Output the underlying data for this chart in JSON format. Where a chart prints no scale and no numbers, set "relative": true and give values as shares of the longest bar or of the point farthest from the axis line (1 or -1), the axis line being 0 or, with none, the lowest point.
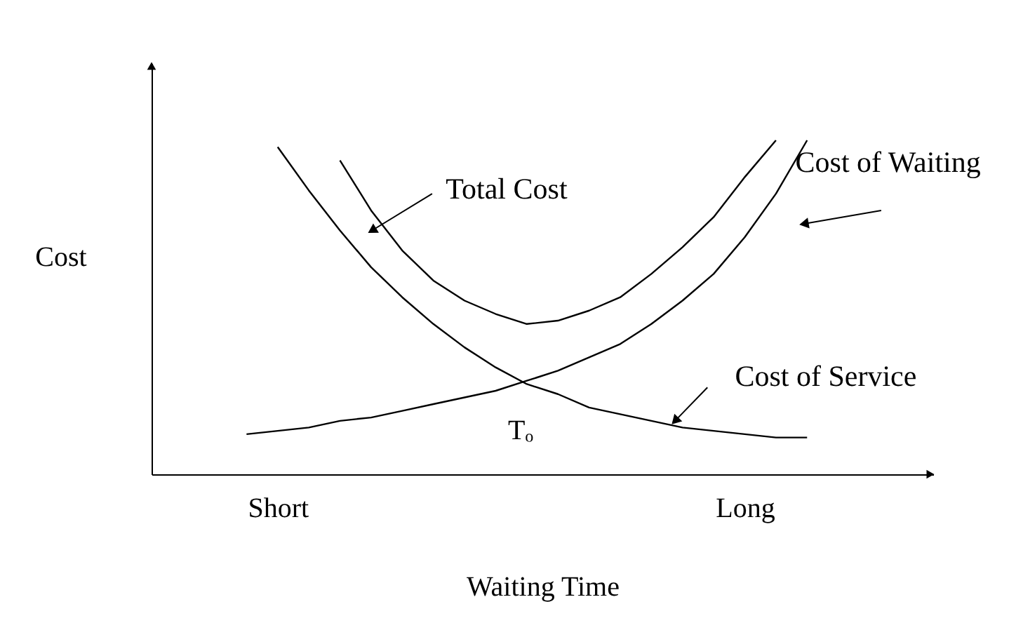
{
  "chart_data": {
    "type": "line",
    "relative": true,
    "xlabel": "Waiting Time",
    "ylabel": "Cost",
    "categories": [
      null,
      null,
      null,
      null,
      "Short",
      null,
      null,
      null,
      null,
      null,
      null,
      null,
      null,
      null,
      null,
      null,
      null,
      null,
      null,
      "Long",
      null,
      null,
      null,
      null,
      null,
      null
    ],
    "grid": false,
    "legend": false,
    "marker": "none",
    "line_style": "solid",
    "series": [
      {
        "name": "Total Cost",
        "color": "#000000",
        "values": [
          null,
          null,
          null,
          null,
          null,
          null,
          0.94,
          0.79,
          0.67,
          0.58,
          0.52,
          0.48,
          0.45,
          0.46,
          0.49,
          0.53,
          0.6,
          0.68,
          0.77,
          0.89,
          1.0,
          null,
          null,
          null,
          null,
          null
        ]
      },
      {
        "name": "Cost of Waiting",
        "color": "#000000",
        "values": [
          null,
          null,
          null,
          0.12,
          0.13,
          0.14,
          0.16,
          0.17,
          0.19,
          0.21,
          0.23,
          0.25,
          0.28,
          0.31,
          0.35,
          0.39,
          0.45,
          0.52,
          0.6,
          0.71,
          0.84,
          1.0,
          null,
          null,
          null,
          null
        ]
      },
      {
        "name": "Cost of Service",
        "color": "#000000",
        "values": [
          null,
          null,
          null,
          null,
          0.98,
          0.85,
          0.73,
          0.62,
          0.53,
          0.45,
          0.38,
          0.32,
          0.27,
          0.24,
          0.2,
          0.18,
          0.16,
          0.14,
          0.13,
          0.12,
          0.11,
          0.11,
          null,
          null,
          null,
          null
        ]
      }
    ],
    "annotations": [
      "Tₒ"
    ]
  }
}
